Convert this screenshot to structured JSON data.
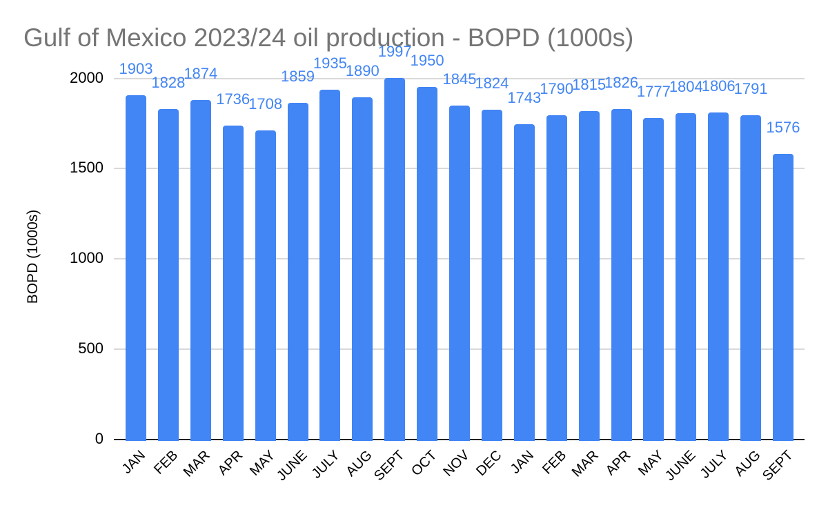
{
  "chart_data": {
    "type": "bar",
    "title": "Gulf of Mexico 2023/24 oil production - BOPD (1000s)",
    "xlabel": "",
    "ylabel": "BOPD (1000s)",
    "categories": [
      "JAN",
      "FEB",
      "MAR",
      "APR",
      "MAY",
      "JUNE",
      "JULY",
      "AUG",
      "SEPT",
      "OCT",
      "NOV",
      "DEC",
      "JAN",
      "FEB",
      "MAR",
      "APR",
      "MAY",
      "JUNE",
      "JULY",
      "AUG",
      "SEPT"
    ],
    "values": [
      1903,
      1828,
      1874,
      1736,
      1708,
      1859,
      1935,
      1890,
      1997,
      1950,
      1845,
      1824,
      1743,
      1790,
      1815,
      1826,
      1777,
      1804,
      1806,
      1791,
      1576
    ],
    "data_labels_visible": true,
    "yticks": [
      0,
      500,
      1000,
      1500,
      2000
    ],
    "ylim": [
      0,
      2000
    ],
    "grid": true,
    "legend_position": "none",
    "x_label_rotation_deg": -45,
    "colors": {
      "bar": "#4285f4",
      "data_label": "#4285f4",
      "title_text": "#757575",
      "axis_text": "#000000",
      "gridline": "#d9d9d9",
      "axis_line": "#212121",
      "background": "#ffffff"
    }
  }
}
